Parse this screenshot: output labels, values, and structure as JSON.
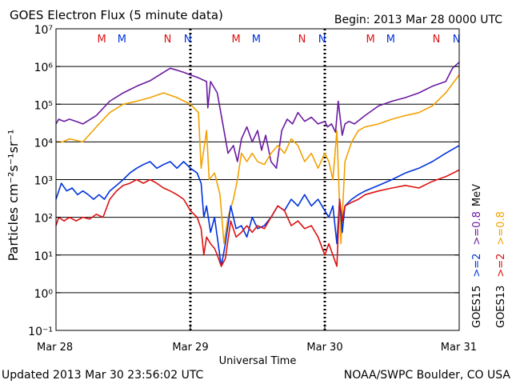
{
  "chart_data": {
    "type": "line",
    "title": "GOES Electron Flux (5 minute data)",
    "begin_label": "Begin: 2013 Mar 28 0000 UTC",
    "xlabel": "Universal Time",
    "ylabel": "Particles cm⁻²s⁻¹sr⁻¹",
    "y_scale": "log",
    "ylim": [
      0.1,
      10000000
    ],
    "y_ticks": [
      {
        "value": 0.1,
        "label": "10⁻¹"
      },
      {
        "value": 1,
        "label": "10⁰"
      },
      {
        "value": 10,
        "label": "10¹"
      },
      {
        "value": 100,
        "label": "10²"
      },
      {
        "value": 1000,
        "label": "10³"
      },
      {
        "value": 10000,
        "label": "10⁴"
      },
      {
        "value": 100000,
        "label": "10⁵"
      },
      {
        "value": 1000000,
        "label": "10⁶"
      },
      {
        "value": 10000000,
        "label": "10⁷"
      }
    ],
    "x_range_days": [
      0,
      3
    ],
    "x_ticks": [
      {
        "day": 0,
        "label": "Mar 28"
      },
      {
        "day": 1,
        "label": "Mar 29"
      },
      {
        "day": 2,
        "label": "Mar 30"
      },
      {
        "day": 3,
        "label": "Mar 31"
      }
    ],
    "threshold_lines": [
      1000
    ],
    "grid": true,
    "mn_markers": [
      {
        "day": 0.34,
        "letter": "M",
        "satellite": "GOES13"
      },
      {
        "day": 0.49,
        "letter": "M",
        "satellite": "GOES15"
      },
      {
        "day": 0.83,
        "letter": "N",
        "satellite": "GOES13"
      },
      {
        "day": 0.98,
        "letter": "N",
        "satellite": "GOES15"
      },
      {
        "day": 1.34,
        "letter": "M",
        "satellite": "GOES13"
      },
      {
        "day": 1.49,
        "letter": "M",
        "satellite": "GOES15"
      },
      {
        "day": 1.83,
        "letter": "N",
        "satellite": "GOES13"
      },
      {
        "day": 1.98,
        "letter": "N",
        "satellite": "GOES15"
      },
      {
        "day": 2.34,
        "letter": "M",
        "satellite": "GOES13"
      },
      {
        "day": 2.49,
        "letter": "M",
        "satellite": "GOES15"
      },
      {
        "day": 2.83,
        "letter": "N",
        "satellite": "GOES13"
      },
      {
        "day": 2.98,
        "letter": "N",
        "satellite": "GOES15"
      }
    ],
    "legend": {
      "placement": "right",
      "groups": [
        {
          "satellite": "GOES15",
          "entries": [
            {
              "label": ">=2",
              "color": "#0033dd"
            },
            {
              "label": ">=0.8",
              "color": "#6a1aa0"
            }
          ]
        },
        {
          "satellite": "GOES13",
          "entries": [
            {
              "label": ">=2",
              "color": "#dd1111"
            },
            {
              "label": ">=0.8",
              "color": "#f2a100"
            }
          ]
        }
      ],
      "unit": "MeV"
    },
    "series": [
      {
        "satellite": "GOES15",
        "energy": ">=0.8",
        "color": "#6a1aa0",
        "points": [
          [
            0,
            30000
          ],
          [
            0.02,
            40000
          ],
          [
            0.06,
            35000
          ],
          [
            0.1,
            40000
          ],
          [
            0.15,
            35000
          ],
          [
            0.2,
            30000
          ],
          [
            0.3,
            50000
          ],
          [
            0.4,
            120000
          ],
          [
            0.5,
            200000
          ],
          [
            0.6,
            300000
          ],
          [
            0.7,
            420000
          ],
          [
            0.8,
            700000
          ],
          [
            0.85,
            900000
          ],
          [
            0.9,
            800000
          ],
          [
            0.95,
            700000
          ],
          [
            1.0,
            600000
          ],
          [
            1.06,
            500000
          ],
          [
            1.12,
            400000
          ],
          [
            1.13,
            80000
          ],
          [
            1.15,
            400000
          ],
          [
            1.2,
            200000
          ],
          [
            1.25,
            20000
          ],
          [
            1.28,
            5000
          ],
          [
            1.32,
            8000
          ],
          [
            1.35,
            3000
          ],
          [
            1.38,
            12000
          ],
          [
            1.42,
            25000
          ],
          [
            1.46,
            10000
          ],
          [
            1.5,
            20000
          ],
          [
            1.53,
            6000
          ],
          [
            1.56,
            15000
          ],
          [
            1.6,
            3000
          ],
          [
            1.64,
            2000
          ],
          [
            1.68,
            20000
          ],
          [
            1.72,
            40000
          ],
          [
            1.76,
            30000
          ],
          [
            1.8,
            60000
          ],
          [
            1.85,
            35000
          ],
          [
            1.9,
            45000
          ],
          [
            1.95,
            30000
          ],
          [
            2.0,
            35000
          ],
          [
            2.02,
            25000
          ],
          [
            2.05,
            30000
          ],
          [
            2.08,
            18000
          ],
          [
            2.1,
            120000
          ],
          [
            2.13,
            15000
          ],
          [
            2.15,
            30000
          ],
          [
            2.18,
            35000
          ],
          [
            2.22,
            30000
          ],
          [
            2.3,
            50000
          ],
          [
            2.4,
            90000
          ],
          [
            2.5,
            120000
          ],
          [
            2.6,
            150000
          ],
          [
            2.7,
            200000
          ],
          [
            2.8,
            300000
          ],
          [
            2.9,
            400000
          ],
          [
            2.95,
            900000
          ],
          [
            3.0,
            1300000
          ]
        ]
      },
      {
        "satellite": "GOES13",
        "energy": ">=0.8",
        "color": "#f2a100",
        "points": [
          [
            0,
            10000
          ],
          [
            0.05,
            10000
          ],
          [
            0.1,
            12000
          ],
          [
            0.2,
            10000
          ],
          [
            0.3,
            25000
          ],
          [
            0.4,
            60000
          ],
          [
            0.5,
            100000
          ],
          [
            0.6,
            120000
          ],
          [
            0.7,
            150000
          ],
          [
            0.8,
            200000
          ],
          [
            0.9,
            150000
          ],
          [
            1.0,
            100000
          ],
          [
            1.06,
            60000
          ],
          [
            1.08,
            2000
          ],
          [
            1.12,
            20000
          ],
          [
            1.14,
            1000
          ],
          [
            1.18,
            1500
          ],
          [
            1.22,
            400
          ],
          [
            1.25,
            20
          ],
          [
            1.28,
            100
          ],
          [
            1.32,
            300
          ],
          [
            1.35,
            1000
          ],
          [
            1.38,
            5000
          ],
          [
            1.42,
            3000
          ],
          [
            1.46,
            5000
          ],
          [
            1.5,
            3000
          ],
          [
            1.55,
            2500
          ],
          [
            1.6,
            5000
          ],
          [
            1.65,
            8000
          ],
          [
            1.7,
            5000
          ],
          [
            1.75,
            12000
          ],
          [
            1.8,
            8000
          ],
          [
            1.85,
            3000
          ],
          [
            1.9,
            5000
          ],
          [
            1.95,
            2000
          ],
          [
            2.0,
            5000
          ],
          [
            2.03,
            3000
          ],
          [
            2.06,
            1000
          ],
          [
            2.09,
            20000
          ],
          [
            2.12,
            20
          ],
          [
            2.15,
            3000
          ],
          [
            2.2,
            10000
          ],
          [
            2.25,
            20000
          ],
          [
            2.3,
            25000
          ],
          [
            2.4,
            30000
          ],
          [
            2.5,
            40000
          ],
          [
            2.6,
            50000
          ],
          [
            2.7,
            60000
          ],
          [
            2.8,
            90000
          ],
          [
            2.9,
            200000
          ],
          [
            3.0,
            600000
          ]
        ]
      },
      {
        "satellite": "GOES15",
        "energy": ">=2",
        "color": "#0033dd",
        "points": [
          [
            0,
            300
          ],
          [
            0.04,
            800
          ],
          [
            0.08,
            500
          ],
          [
            0.12,
            600
          ],
          [
            0.16,
            400
          ],
          [
            0.2,
            500
          ],
          [
            0.24,
            400
          ],
          [
            0.28,
            300
          ],
          [
            0.32,
            400
          ],
          [
            0.36,
            300
          ],
          [
            0.4,
            500
          ],
          [
            0.45,
            700
          ],
          [
            0.5,
            1000
          ],
          [
            0.55,
            1500
          ],
          [
            0.6,
            2000
          ],
          [
            0.65,
            2500
          ],
          [
            0.7,
            3000
          ],
          [
            0.75,
            2000
          ],
          [
            0.8,
            2500
          ],
          [
            0.85,
            3000
          ],
          [
            0.9,
            2000
          ],
          [
            0.95,
            3000
          ],
          [
            1.0,
            2000
          ],
          [
            1.05,
            1500
          ],
          [
            1.08,
            800
          ],
          [
            1.1,
            100
          ],
          [
            1.12,
            200
          ],
          [
            1.15,
            40
          ],
          [
            1.18,
            100
          ],
          [
            1.2,
            30
          ],
          [
            1.23,
            5
          ],
          [
            1.26,
            20
          ],
          [
            1.3,
            200
          ],
          [
            1.34,
            50
          ],
          [
            1.38,
            60
          ],
          [
            1.42,
            30
          ],
          [
            1.46,
            100
          ],
          [
            1.5,
            50
          ],
          [
            1.55,
            60
          ],
          [
            1.6,
            100
          ],
          [
            1.65,
            200
          ],
          [
            1.7,
            150
          ],
          [
            1.75,
            300
          ],
          [
            1.8,
            200
          ],
          [
            1.85,
            400
          ],
          [
            1.9,
            200
          ],
          [
            1.95,
            300
          ],
          [
            2.0,
            150
          ],
          [
            2.03,
            100
          ],
          [
            2.06,
            200
          ],
          [
            2.09,
            20
          ],
          [
            2.11,
            300
          ],
          [
            2.13,
            40
          ],
          [
            2.15,
            200
          ],
          [
            2.2,
            300
          ],
          [
            2.25,
            400
          ],
          [
            2.3,
            500
          ],
          [
            2.4,
            700
          ],
          [
            2.5,
            1000
          ],
          [
            2.6,
            1500
          ],
          [
            2.7,
            2000
          ],
          [
            2.8,
            3000
          ],
          [
            2.9,
            5000
          ],
          [
            3.0,
            8000
          ]
        ]
      },
      {
        "satellite": "GOES13",
        "energy": ">=2",
        "color": "#dd1111",
        "points": [
          [
            0,
            60
          ],
          [
            0.02,
            100
          ],
          [
            0.06,
            80
          ],
          [
            0.1,
            100
          ],
          [
            0.15,
            80
          ],
          [
            0.2,
            100
          ],
          [
            0.25,
            90
          ],
          [
            0.3,
            120
          ],
          [
            0.35,
            100
          ],
          [
            0.4,
            300
          ],
          [
            0.45,
            500
          ],
          [
            0.5,
            700
          ],
          [
            0.55,
            800
          ],
          [
            0.6,
            1000
          ],
          [
            0.65,
            800
          ],
          [
            0.7,
            1000
          ],
          [
            0.75,
            800
          ],
          [
            0.8,
            600
          ],
          [
            0.85,
            500
          ],
          [
            0.9,
            400
          ],
          [
            0.95,
            300
          ],
          [
            1.0,
            150
          ],
          [
            1.05,
            100
          ],
          [
            1.08,
            50
          ],
          [
            1.1,
            10
          ],
          [
            1.12,
            30
          ],
          [
            1.15,
            20
          ],
          [
            1.18,
            15
          ],
          [
            1.2,
            10
          ],
          [
            1.23,
            5
          ],
          [
            1.26,
            8
          ],
          [
            1.3,
            80
          ],
          [
            1.34,
            30
          ],
          [
            1.38,
            40
          ],
          [
            1.42,
            60
          ],
          [
            1.46,
            40
          ],
          [
            1.5,
            60
          ],
          [
            1.55,
            50
          ],
          [
            1.6,
            100
          ],
          [
            1.65,
            200
          ],
          [
            1.7,
            150
          ],
          [
            1.75,
            60
          ],
          [
            1.8,
            80
          ],
          [
            1.85,
            50
          ],
          [
            1.9,
            60
          ],
          [
            1.95,
            30
          ],
          [
            2.0,
            10
          ],
          [
            2.03,
            20
          ],
          [
            2.06,
            10
          ],
          [
            2.09,
            5
          ],
          [
            2.11,
            300
          ],
          [
            2.13,
            80
          ],
          [
            2.15,
            200
          ],
          [
            2.2,
            250
          ],
          [
            2.25,
            300
          ],
          [
            2.3,
            400
          ],
          [
            2.4,
            500
          ],
          [
            2.5,
            600
          ],
          [
            2.6,
            700
          ],
          [
            2.7,
            600
          ],
          [
            2.8,
            900
          ],
          [
            2.9,
            1200
          ],
          [
            3.0,
            1800
          ]
        ]
      }
    ]
  },
  "footer": {
    "updated": "Updated 2013 Mar 30 23:56:02 UTC",
    "credit": "NOAA/SWPC Boulder, CO USA"
  }
}
